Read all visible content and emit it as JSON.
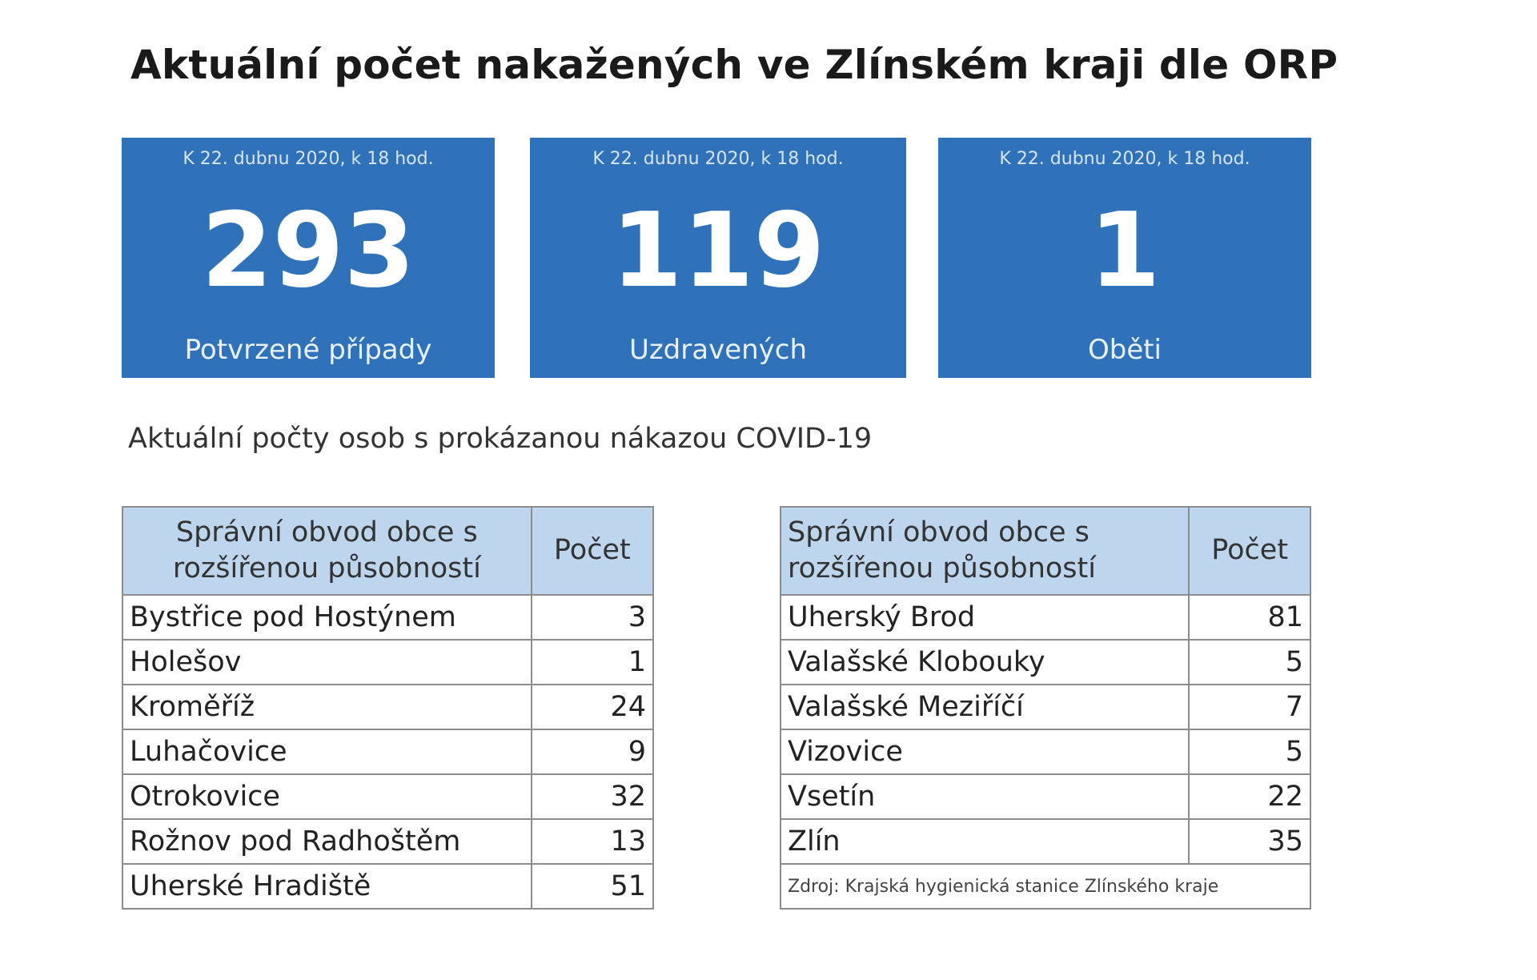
{
  "title": "Aktuální počet nakažených ve Zlínském kraji dle ORP",
  "cards": [
    {
      "date": "K 22. dubnu 2020, k 18 hod.",
      "value": "293",
      "label": "Potvrzené případy"
    },
    {
      "date": "K 22. dubnu 2020, k 18 hod.",
      "value": "119",
      "label": "Uzdravených"
    },
    {
      "date": "K 22. dubnu 2020, k 18 hod.",
      "value": "1",
      "label": "Oběti"
    }
  ],
  "subtitle": "Aktuální počty osob s prokázanou nákazou COVID-19",
  "table_header": {
    "name_line1": "Správní obvod obce s",
    "name_line2": "rozšířenou působností",
    "count": "Počet"
  },
  "left_table": [
    {
      "name": "Bystřice pod Hostýnem",
      "count": "3"
    },
    {
      "name": "Holešov",
      "count": "1"
    },
    {
      "name": "Kroměříž",
      "count": "24"
    },
    {
      "name": "Luhačovice",
      "count": "9"
    },
    {
      "name": "Otrokovice",
      "count": "32"
    },
    {
      "name": "Rožnov pod Radhoštěm",
      "count": "13"
    },
    {
      "name": "Uherské Hradiště",
      "count": "51"
    }
  ],
  "right_table": [
    {
      "name": "Uherský Brod",
      "count": "81"
    },
    {
      "name": "Valašské Klobouky",
      "count": "5"
    },
    {
      "name": "Valašské Meziříčí",
      "count": "7"
    },
    {
      "name": "Vizovice",
      "count": "5"
    },
    {
      "name": "Vsetín",
      "count": "22"
    },
    {
      "name": "Zlín",
      "count": "35"
    }
  ],
  "source": "Zdroj: Krajská hygienická stanice Zlínského kraje",
  "colors": {
    "card_bg": "#2f72b9",
    "header_bg": "#bdd6ee"
  }
}
